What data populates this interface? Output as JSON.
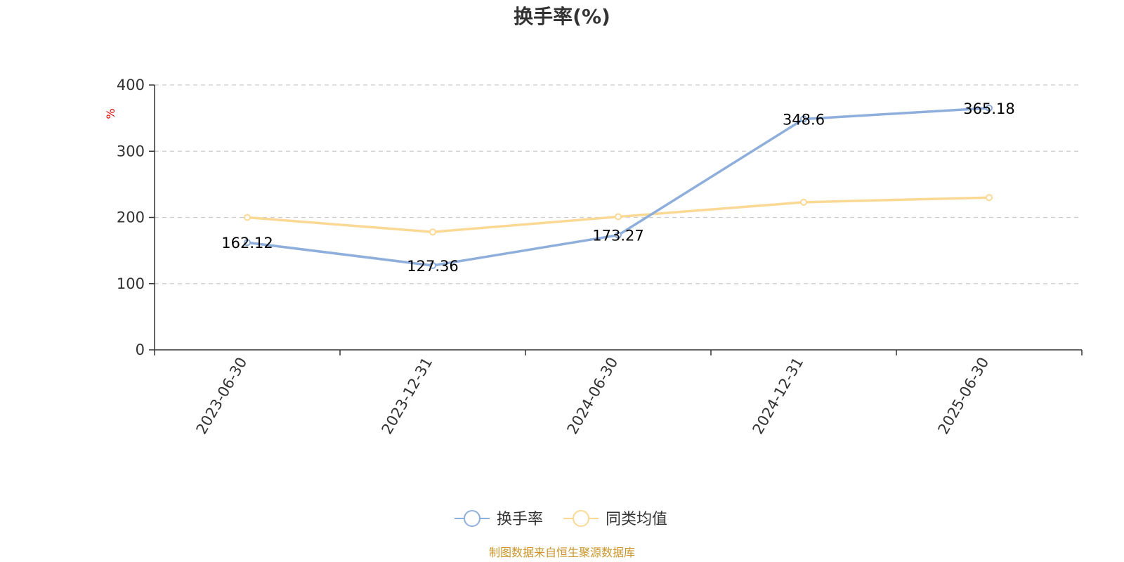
{
  "chart_data": {
    "type": "line",
    "title": "换手率(%)",
    "ylabel": "%",
    "ylim": [
      0,
      400
    ],
    "yticks": [
      0,
      100,
      200,
      300,
      400
    ],
    "categories": [
      "2023-06-30",
      "2023-12-31",
      "2024-06-30",
      "2024-12-31",
      "2025-06-30"
    ],
    "series": [
      {
        "name": "换手率",
        "values": [
          162.12,
          127.36,
          173.27,
          348.6,
          365.18
        ],
        "color": "#8eaedb",
        "data_labels": true
      },
      {
        "name": "同类均值",
        "values": [
          200,
          178,
          201,
          223,
          230
        ],
        "color": "#fbd995",
        "data_labels": false
      }
    ],
    "grid": true,
    "legend_position": "bottom-center"
  },
  "source_text": "制图数据来自恒生聚源数据库",
  "colors": {
    "axis": "#333333",
    "grid": "#cccccc",
    "unit": "#e00000",
    "source": "#c8962a"
  }
}
